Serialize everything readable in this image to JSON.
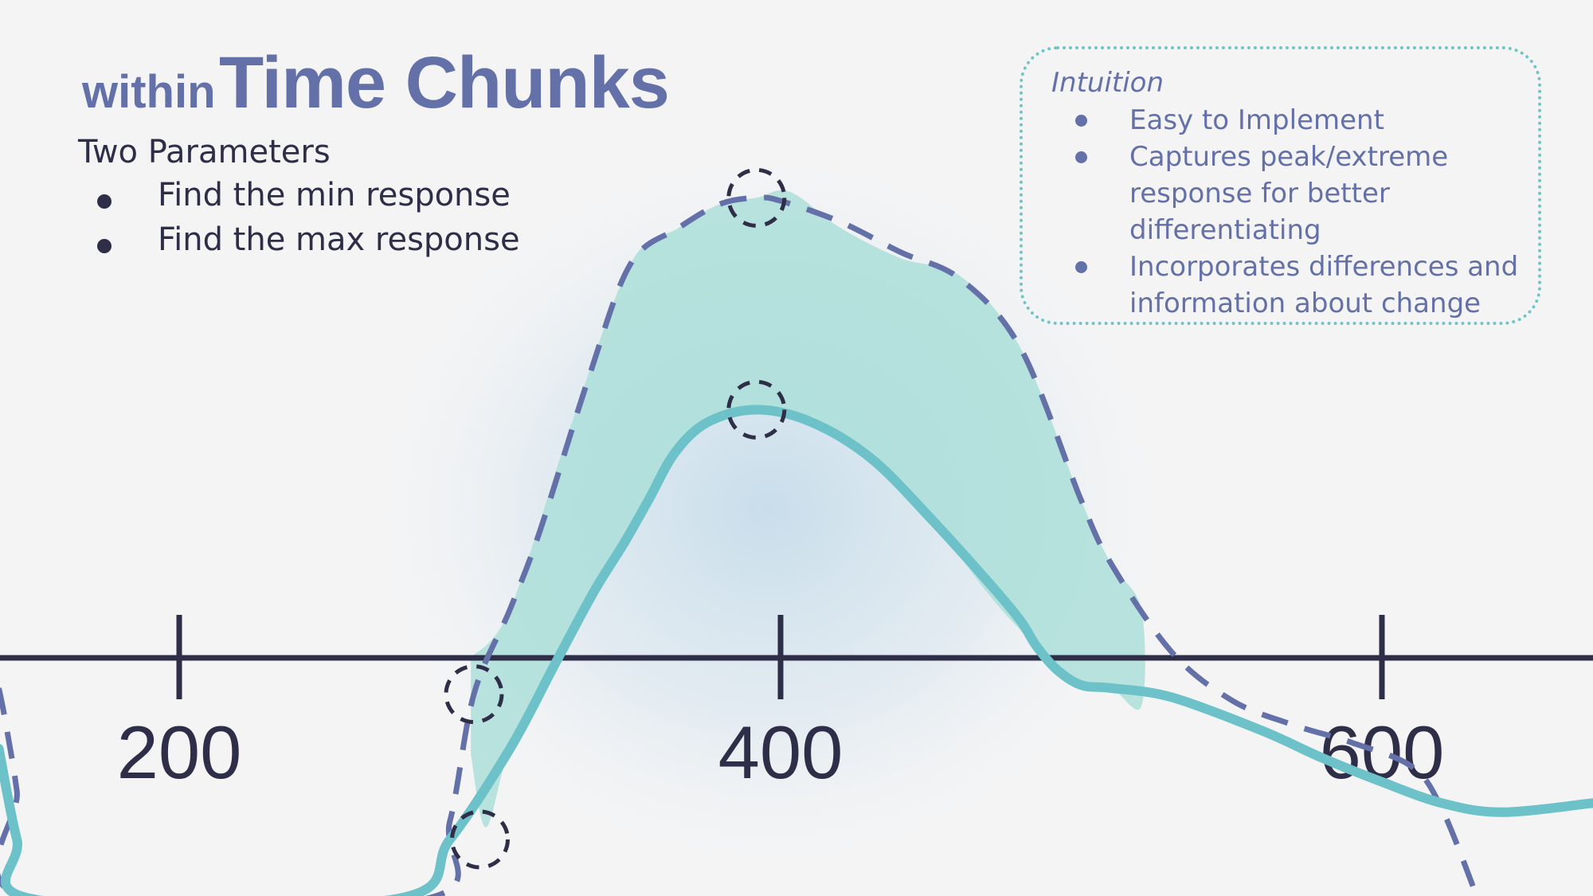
{
  "title": {
    "small": "within",
    "large": "Time Chunks"
  },
  "parameters": {
    "heading": "Two Parameters",
    "items": [
      "Find the min response",
      "Find the max response"
    ]
  },
  "intuition": {
    "heading": "Intuition",
    "items": [
      [
        "Easy to Implement"
      ],
      [
        "Captures peak/extreme",
        "response for better",
        "differentiating"
      ],
      [
        "Incorporates differences and",
        "information about change"
      ]
    ]
  },
  "colors": {
    "title": "#6470a8",
    "text": "#2e2e48",
    "axis": "#2e2e48",
    "solid_line": "#6cc2c8",
    "dashed_line": "#6470a8",
    "shaded": "#a9ded8",
    "glow": "#c6dcea",
    "box_border": "#6fc4c8"
  },
  "chart_data": {
    "type": "line",
    "title": "",
    "xlabel": "",
    "ylabel": "",
    "x_ticks": [
      200,
      400,
      600
    ],
    "xlim": [
      140,
      670
    ],
    "grid": false,
    "series": [
      {
        "style": "dashed",
        "color": "#6470a8",
        "x": [
          140,
          142,
          146,
          150,
          280,
          290,
          298,
          310,
          320,
          336,
          350,
          366,
          380,
          392,
          400,
          420,
          440,
          460,
          480,
          500,
          510,
          530,
          550,
          570,
          590,
          610,
          620,
          632
        ],
        "y": [
          -0.5,
          -1.0,
          -2.2,
          -4.0,
          -4.0,
          -2.7,
          -0.6,
          0.8,
          2.1,
          4.6,
          6.5,
          7.1,
          7.5,
          7.6,
          7.55,
          7.2,
          6.7,
          6.25,
          5.1,
          2.6,
          1.55,
          0.1,
          -0.7,
          -1.1,
          -1.4,
          -1.8,
          -2.5,
          -4.0
        ]
      },
      {
        "style": "solid",
        "color": "#6cc2c8",
        "x": [
          140,
          146,
          153,
          270,
          290,
          310,
          325,
          338,
          348,
          356,
          365,
          376,
          392,
          410,
          430,
          450,
          470,
          480,
          485,
          492,
          500,
          510,
          530,
          560,
          580,
          600,
          620,
          640,
          670
        ],
        "y": [
          -1.5,
          -3.0,
          -4.0,
          -4.0,
          -3.0,
          -1.5,
          -0.1,
          1.1,
          1.9,
          2.6,
          3.4,
          3.9,
          4.1,
          3.9,
          3.3,
          2.3,
          1.2,
          0.6,
          0.2,
          -0.2,
          -0.45,
          -0.5,
          -0.65,
          -1.2,
          -1.65,
          -2.05,
          -2.4,
          -2.55,
          -2.4
        ]
      }
    ],
    "shaded_region": {
      "x": [
        297,
        310,
        330,
        350,
        366,
        380,
        392,
        403,
        420,
        440,
        460,
        480,
        500,
        510,
        520,
        520,
        510,
        500,
        485,
        470,
        450,
        430,
        410,
        392,
        376,
        365,
        350,
        338,
        325,
        310,
        302,
        297
      ],
      "y": [
        0.0,
        0.8,
        3.8,
        6.5,
        7.1,
        7.5,
        7.6,
        7.7,
        7.1,
        6.6,
        6.3,
        5.1,
        2.6,
        1.55,
        0.8,
        -0.8,
        -0.5,
        -0.45,
        0.2,
        1.0,
        2.3,
        3.3,
        3.9,
        4.1,
        3.9,
        3.4,
        2.1,
        1.1,
        -0.1,
        -1.5,
        -2.8,
        -1.6
      ]
    },
    "markers": [
      {
        "x": 392,
        "y": 7.6
      },
      {
        "x": 392,
        "y": 4.1
      },
      {
        "x": 298,
        "y": -0.6
      },
      {
        "x": 300,
        "y": -3.0
      }
    ]
  }
}
